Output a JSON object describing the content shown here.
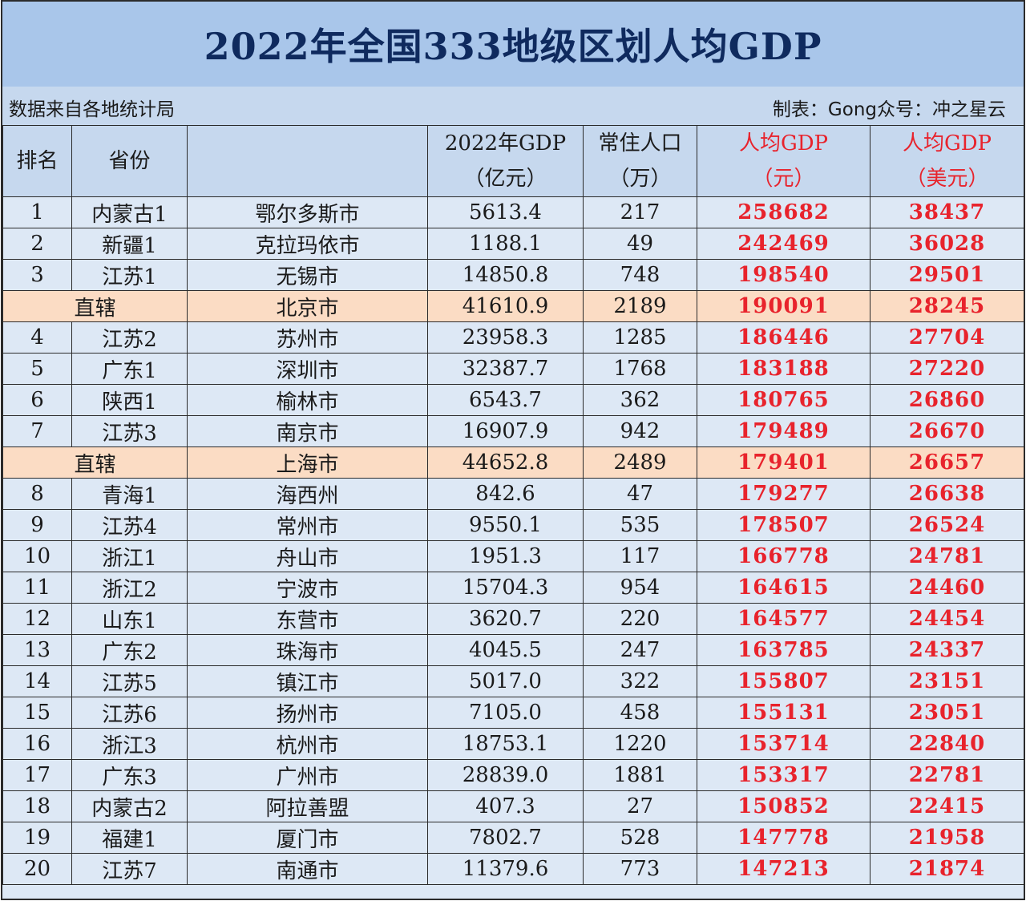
{
  "title": "2022年全国333地级区划人均GDP",
  "source_note": "数据来自各地统计局",
  "credit": "制表：Gong众号：冲之星云",
  "headers": {
    "rank": "排名",
    "province": "省份",
    "city": "",
    "gdp_line1": "2022年GDP",
    "gdp_line2": "（亿元）",
    "pop_line1": "常住人口",
    "pop_line2": "（万）",
    "pc_cny_line1": "人均GDP",
    "pc_cny_line2": "（元）",
    "pc_usd_line1": "人均GDP",
    "pc_usd_line2": "（美元）"
  },
  "rows": [
    {
      "rank": "1",
      "province": "内蒙古1",
      "city": "鄂尔多斯市",
      "gdp": "5613.4",
      "pop": "217",
      "pc_cny": "258682",
      "pc_usd": "38437",
      "highlight": false
    },
    {
      "rank": "2",
      "province": "新疆1",
      "city": "克拉玛依市",
      "gdp": "1188.1",
      "pop": "49",
      "pc_cny": "242469",
      "pc_usd": "36028",
      "highlight": false
    },
    {
      "rank": "3",
      "province": "江苏1",
      "city": "无锡市",
      "gdp": "14850.8",
      "pop": "748",
      "pc_cny": "198540",
      "pc_usd": "29501",
      "highlight": false
    },
    {
      "rank": "",
      "province": "直辖",
      "city": "北京市",
      "gdp": "41610.9",
      "pop": "2189",
      "pc_cny": "190091",
      "pc_usd": "28245",
      "highlight": true
    },
    {
      "rank": "4",
      "province": "江苏2",
      "city": "苏州市",
      "gdp": "23958.3",
      "pop": "1285",
      "pc_cny": "186446",
      "pc_usd": "27704",
      "highlight": false
    },
    {
      "rank": "5",
      "province": "广东1",
      "city": "深圳市",
      "gdp": "32387.7",
      "pop": "1768",
      "pc_cny": "183188",
      "pc_usd": "27220",
      "highlight": false
    },
    {
      "rank": "6",
      "province": "陕西1",
      "city": "榆林市",
      "gdp": "6543.7",
      "pop": "362",
      "pc_cny": "180765",
      "pc_usd": "26860",
      "highlight": false
    },
    {
      "rank": "7",
      "province": "江苏3",
      "city": "南京市",
      "gdp": "16907.9",
      "pop": "942",
      "pc_cny": "179489",
      "pc_usd": "26670",
      "highlight": false
    },
    {
      "rank": "",
      "province": "直辖",
      "city": "上海市",
      "gdp": "44652.8",
      "pop": "2489",
      "pc_cny": "179401",
      "pc_usd": "26657",
      "highlight": true
    },
    {
      "rank": "8",
      "province": "青海1",
      "city": "海西州",
      "gdp": "842.6",
      "pop": "47",
      "pc_cny": "179277",
      "pc_usd": "26638",
      "highlight": false
    },
    {
      "rank": "9",
      "province": "江苏4",
      "city": "常州市",
      "gdp": "9550.1",
      "pop": "535",
      "pc_cny": "178507",
      "pc_usd": "26524",
      "highlight": false
    },
    {
      "rank": "10",
      "province": "浙江1",
      "city": "舟山市",
      "gdp": "1951.3",
      "pop": "117",
      "pc_cny": "166778",
      "pc_usd": "24781",
      "highlight": false
    },
    {
      "rank": "11",
      "province": "浙江2",
      "city": "宁波市",
      "gdp": "15704.3",
      "pop": "954",
      "pc_cny": "164615",
      "pc_usd": "24460",
      "highlight": false
    },
    {
      "rank": "12",
      "province": "山东1",
      "city": "东营市",
      "gdp": "3620.7",
      "pop": "220",
      "pc_cny": "164577",
      "pc_usd": "24454",
      "highlight": false
    },
    {
      "rank": "13",
      "province": "广东2",
      "city": "珠海市",
      "gdp": "4045.5",
      "pop": "247",
      "pc_cny": "163785",
      "pc_usd": "24337",
      "highlight": false
    },
    {
      "rank": "14",
      "province": "江苏5",
      "city": "镇江市",
      "gdp": "5017.0",
      "pop": "322",
      "pc_cny": "155807",
      "pc_usd": "23151",
      "highlight": false
    },
    {
      "rank": "15",
      "province": "江苏6",
      "city": "扬州市",
      "gdp": "7105.0",
      "pop": "458",
      "pc_cny": "155131",
      "pc_usd": "23051",
      "highlight": false
    },
    {
      "rank": "16",
      "province": "浙江3",
      "city": "杭州市",
      "gdp": "18753.1",
      "pop": "1220",
      "pc_cny": "153714",
      "pc_usd": "22840",
      "highlight": false
    },
    {
      "rank": "17",
      "province": "广东3",
      "city": "广州市",
      "gdp": "28839.0",
      "pop": "1881",
      "pc_cny": "153317",
      "pc_usd": "22781",
      "highlight": false
    },
    {
      "rank": "18",
      "province": "内蒙古2",
      "city": "阿拉善盟",
      "gdp": "407.3",
      "pop": "27",
      "pc_cny": "150852",
      "pc_usd": "22415",
      "highlight": false
    },
    {
      "rank": "19",
      "province": "福建1",
      "city": "厦门市",
      "gdp": "7802.7",
      "pop": "528",
      "pc_cny": "147778",
      "pc_usd": "21958",
      "highlight": false
    },
    {
      "rank": "20",
      "province": "江苏7",
      "city": "南通市",
      "gdp": "11379.6",
      "pop": "773",
      "pc_cny": "147213",
      "pc_usd": "21874",
      "highlight": false
    }
  ]
}
